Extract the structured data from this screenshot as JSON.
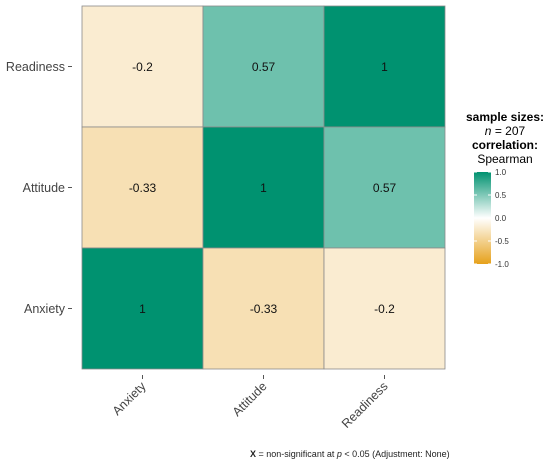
{
  "chart_data": {
    "type": "heatmap",
    "variables": [
      "Anxiety",
      "Attitude",
      "Readiness"
    ],
    "x_categories": [
      "Anxiety",
      "Attitude",
      "Readiness"
    ],
    "y_categories": [
      "Anxiety",
      "Attitude",
      "Readiness"
    ],
    "matrix": [
      {
        "row": "Readiness",
        "values": [
          -0.2,
          0.57,
          1
        ]
      },
      {
        "row": "Attitude",
        "values": [
          -0.33,
          1,
          0.57
        ]
      },
      {
        "row": "Anxiety",
        "values": [
          1,
          -0.33,
          -0.2
        ]
      }
    ],
    "cell_labels": [
      [
        "-0.2",
        "0.57",
        "1"
      ],
      [
        "-0.33",
        "1",
        "0.57"
      ],
      [
        "1",
        "-0.33",
        "-0.2"
      ]
    ],
    "color_scale": {
      "low": "#E6A11B",
      "mid": "#FFFFFF",
      "high": "#009270",
      "range": [
        -1,
        1
      ],
      "ticks": [
        "1.0",
        "0.5",
        "0.0",
        "-0.5",
        "-1.0"
      ],
      "tick_values": [
        1,
        0.5,
        0,
        -0.5,
        -1
      ]
    },
    "legend": {
      "placement": "right",
      "title_1": "sample sizes:",
      "n_label": "n",
      "n_value": "= 207",
      "title_2": "correlation:",
      "method": "Spearman"
    },
    "caption": {
      "mark": "X",
      "text_1": "= non-significant at",
      "p_label": "p",
      "text_2": "< 0.05 (Adjustment: None)"
    }
  }
}
